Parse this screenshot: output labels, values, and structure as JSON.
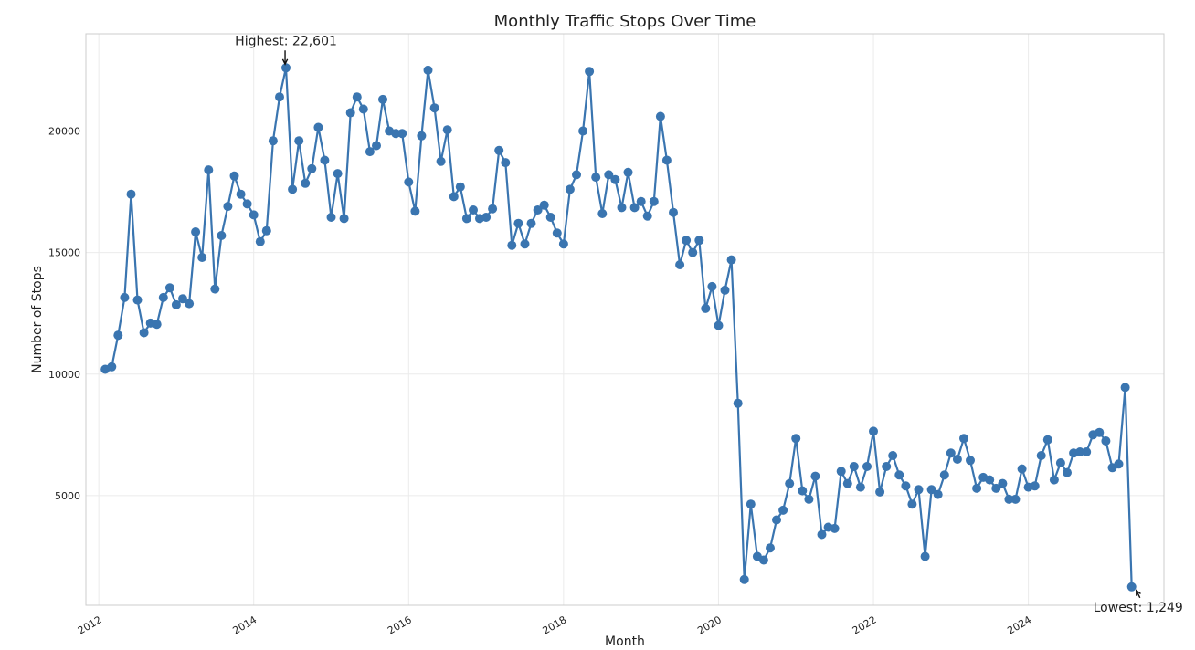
{
  "chart_data": {
    "type": "line",
    "title": "Monthly Traffic Stops Over Time",
    "xlabel": "Month",
    "ylabel": "Number of Stops",
    "grid": true,
    "x_start": "2012-02",
    "x_ticks": [
      "2012",
      "2014",
      "2016",
      "2018",
      "2020",
      "2022",
      "2024"
    ],
    "y_ticks": [
      5000,
      10000,
      15000,
      20000
    ],
    "xlim": [
      "2011-11",
      "2025-10"
    ],
    "ylim": [
      490,
      24000
    ],
    "annotations": [
      {
        "label": "Highest: 22,601",
        "x": "2014-06",
        "y": 22601
      },
      {
        "label": "Lowest: 1,249",
        "x": "2025-06",
        "y": 1249
      }
    ],
    "series": [
      {
        "values": [
          10200,
          10300,
          11600,
          13150,
          17400,
          13050,
          11700,
          12100,
          12050,
          13150,
          13550,
          12850,
          13100,
          12900,
          15850,
          14800,
          18400,
          13500,
          15700,
          16900,
          18150,
          17400,
          17000,
          16550,
          15450,
          15900,
          19600,
          21400,
          22601,
          17600,
          19600,
          17850,
          18450,
          20150,
          18800,
          16450,
          18250,
          16400,
          20750,
          21400,
          20900,
          19150,
          19400,
          21300,
          20000,
          19900,
          19900,
          17900,
          16700,
          19800,
          22500,
          20950,
          18750,
          20050,
          17300,
          17700,
          16400,
          16750,
          16400,
          16450,
          16800,
          19200,
          18700,
          15300,
          16200,
          15350,
          16200,
          16750,
          16950,
          16450,
          15800,
          15350,
          17600,
          18200,
          20000,
          22450,
          18100,
          16600,
          18200,
          18000,
          16850,
          18300,
          16850,
          17100,
          16500,
          17100,
          20600,
          18800,
          16650,
          14500,
          15500,
          15000,
          15500,
          12700,
          13600,
          12000,
          13450,
          14700,
          8800,
          1550,
          4650,
          2500,
          2350,
          2850,
          4000,
          4400,
          5500,
          7350,
          5200,
          4850,
          5800,
          3400,
          3700,
          3650,
          6000,
          5500,
          6200,
          5350,
          6200,
          7650,
          5150,
          6200,
          6650,
          5850,
          5400,
          4650,
          5250,
          2500,
          5250,
          5050,
          5850,
          6750,
          6500,
          7350,
          6450,
          5300,
          5750,
          5650,
          5300,
          5500,
          4850,
          4850,
          6100,
          5350,
          5400,
          6650,
          7300,
          5650,
          6350,
          5950,
          6750,
          6800,
          6800,
          7500,
          7600,
          7250,
          6150,
          6300,
          9450,
          1249
        ]
      }
    ]
  }
}
